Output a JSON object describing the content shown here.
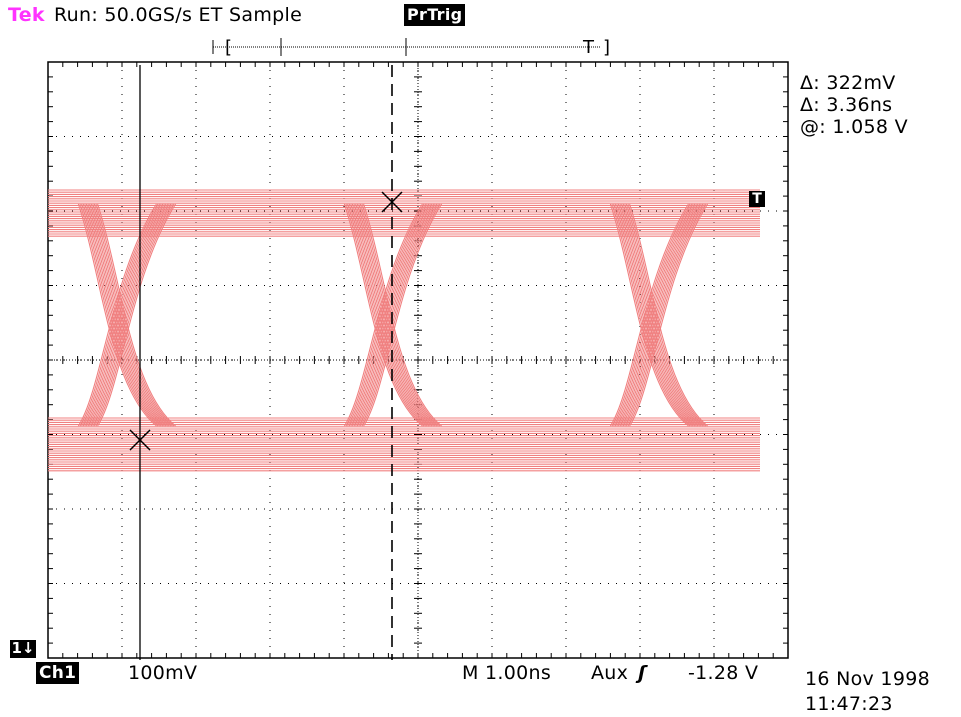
{
  "header": {
    "brand": "Tek",
    "status": "Run: 50.0GS/s ET Sample",
    "trigger_status": "PrTrig"
  },
  "readouts": {
    "delta_voltage": "Δ: 322mV",
    "delta_time": "Δ: 3.36ns",
    "at_voltage": "@: 1.058 V"
  },
  "footer": {
    "channel": "Ch1",
    "scale": "100mV",
    "timebase": "M 1.00ns",
    "trigger_source": "Aux",
    "trigger_level": "-1.28 V",
    "date": "16 Nov 1998",
    "time": "11:47:23"
  },
  "markers": {
    "channel_ground": "1↓",
    "trigger_level": "T"
  },
  "colors": {
    "trace": "#f08080",
    "grid": "#000000",
    "brand": "#ff33ff"
  }
}
